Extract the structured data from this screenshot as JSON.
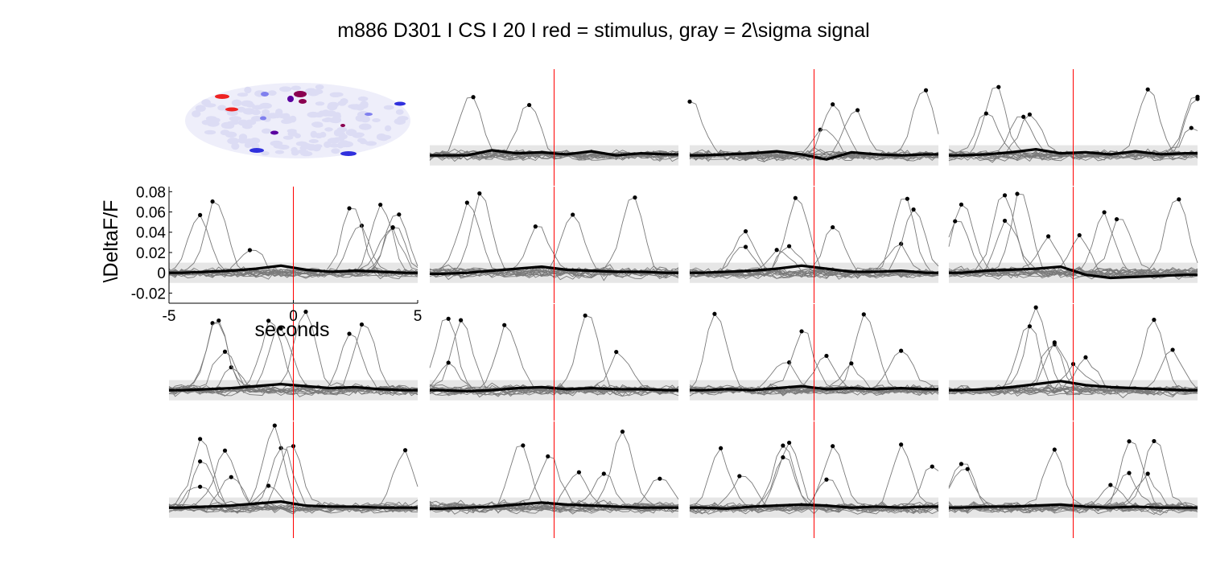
{
  "figure": {
    "title": "m886 D301 I CS I 20 I red = stimulus, gray = 2\\sigma signal"
  },
  "colors": {
    "stimulus": "#ff0000",
    "sigma_band": "#e6e6e6",
    "trial_trace": "#7a7a7a",
    "mean_trace": "#000000",
    "peak_marker": "#000000",
    "roi_background": "#dcdcf4",
    "roi_map_colors": [
      "#ee2222",
      "#8a0050",
      "#5a00a0",
      "#3030dd",
      "#8080ee"
    ]
  },
  "chart_data": {
    "type": "line",
    "layout": "4x4 small multiples; top-left panel is an ROI map image",
    "x_range": [
      -5,
      5
    ],
    "y_range": [
      -0.03,
      0.085
    ],
    "stimulus_time": 0,
    "sigma_band_half_width": 0.01,
    "xlabel": "seconds",
    "ylabel": "\\DeltaF/F",
    "xticks": [
      "-5",
      "0",
      "5"
    ],
    "yticks": [
      "0.08",
      "0.06",
      "0.04",
      "0.02",
      "0",
      "-0.02"
    ],
    "series": [
      {
        "x": [
          -4.5,
          -3.5,
          -2.5,
          -1.5,
          -0.5,
          0.5,
          1.5,
          2.5,
          3.5,
          4.5
        ],
        "y": [
          0,
          0,
          0.005,
          0.002,
          0.003,
          0.001,
          0.004,
          0,
          0.002,
          0.001
        ]
      },
      {
        "x": [
          -4.5,
          -3.5,
          -2.5,
          -1.5,
          -0.5,
          0.5,
          1.5,
          2.5,
          3.5,
          4.5
        ],
        "y": [
          0,
          0.001,
          0.002,
          0.004,
          0.001,
          -0.004,
          0.003,
          0.001,
          0,
          0.001
        ]
      },
      {
        "x": [
          -4.5,
          -3.5,
          -2.5,
          -1.5,
          -0.5,
          0.5,
          1.5,
          2.5,
          3.5,
          4.5
        ],
        "y": [
          0,
          0.001,
          0.003,
          0.006,
          0.002,
          0.003,
          0.001,
          0.004,
          0.001,
          0.002
        ]
      },
      {
        "x": [
          -4.5,
          -3.5,
          -2.5,
          -1.5,
          -0.5,
          0.5,
          1.5,
          2.5,
          3.5,
          4.5
        ],
        "y": [
          0,
          0.001,
          0.002,
          0.004,
          0.007,
          0.003,
          0.001,
          0.002,
          0.001,
          0
        ]
      },
      {
        "x": [
          -4.5,
          -3.5,
          -2.5,
          -1.5,
          -0.5,
          0.5,
          1.5,
          2.5,
          3.5,
          4.5
        ],
        "y": [
          -0.001,
          0,
          0.002,
          0.004,
          0.006,
          0.003,
          0.002,
          0.001,
          0.001,
          0
        ]
      },
      {
        "x": [
          -4.5,
          -3.5,
          -2.5,
          -1.5,
          -0.5,
          0.5,
          1.5,
          2.5,
          3.5,
          4.5
        ],
        "y": [
          0,
          0.001,
          0.002,
          0.004,
          0.007,
          0.004,
          0.001,
          0.001,
          0.002,
          0
        ]
      },
      {
        "x": [
          -4.5,
          -3.5,
          -2.5,
          -1.5,
          -0.5,
          0.5,
          1.5,
          2.5,
          3.5,
          4.5
        ],
        "y": [
          0,
          0.002,
          0.003,
          0.004,
          0.006,
          -0.002,
          -0.005,
          -0.004,
          -0.003,
          -0.002
        ]
      },
      {
        "x": [
          -4.5,
          -3.5,
          -2.5,
          -1.5,
          -0.5,
          0.5,
          1.5,
          2.5,
          3.5,
          4.5
        ],
        "y": [
          0,
          0.001,
          0.002,
          0.004,
          0.006,
          0.004,
          0.002,
          0.003,
          0.001,
          0
        ]
      },
      {
        "x": [
          -4.5,
          -3.5,
          -2.5,
          -1.5,
          -0.5,
          0.5,
          1.5,
          2.5,
          3.5,
          4.5
        ],
        "y": [
          0,
          -0.001,
          0,
          0.002,
          0.003,
          0.001,
          0.002,
          0.001,
          0.001,
          0
        ]
      },
      {
        "x": [
          -4.5,
          -3.5,
          -2.5,
          -1.5,
          -0.5,
          0.5,
          1.5,
          2.5,
          3.5,
          4.5
        ],
        "y": [
          0,
          0.001,
          0,
          0.002,
          0.004,
          0.001,
          0.002,
          0.001,
          0.002,
          0.001
        ]
      },
      {
        "x": [
          -4.5,
          -3.5,
          -2.5,
          -1.5,
          -0.5,
          0.5,
          1.5,
          2.5,
          3.5,
          4.5
        ],
        "y": [
          0,
          0.001,
          0.003,
          0.006,
          0.009,
          0.005,
          0.003,
          0.002,
          0.001,
          0
        ]
      },
      {
        "x": [
          -4.5,
          -3.5,
          -2.5,
          -1.5,
          -0.5,
          0.5,
          1.5,
          2.5,
          3.5,
          4.5
        ],
        "y": [
          0,
          0.001,
          0.002,
          0.004,
          0.006,
          0.002,
          0.001,
          0.001,
          0,
          0
        ]
      },
      {
        "x": [
          -4.5,
          -3.5,
          -2.5,
          -1.5,
          -0.5,
          0.5,
          1.5,
          2.5,
          3.5,
          4.5
        ],
        "y": [
          -0.001,
          0,
          0.001,
          0.003,
          0.005,
          0.003,
          0.002,
          0.001,
          0,
          0
        ]
      },
      {
        "x": [
          -4.5,
          -3.5,
          -2.5,
          -1.5,
          -0.5,
          0.5,
          1.5,
          2.5,
          3.5,
          4.5
        ],
        "y": [
          0,
          -0.001,
          0.001,
          0.002,
          0.003,
          0.002,
          0,
          0.001,
          0,
          0.001
        ]
      },
      {
        "x": [
          -4.5,
          -3.5,
          -2.5,
          -1.5,
          -0.5,
          0.5,
          1.5,
          2.5,
          3.5,
          4.5
        ],
        "y": [
          0,
          0.001,
          0.001,
          0.002,
          0.003,
          0.001,
          0,
          0.001,
          0,
          0
        ]
      }
    ]
  }
}
